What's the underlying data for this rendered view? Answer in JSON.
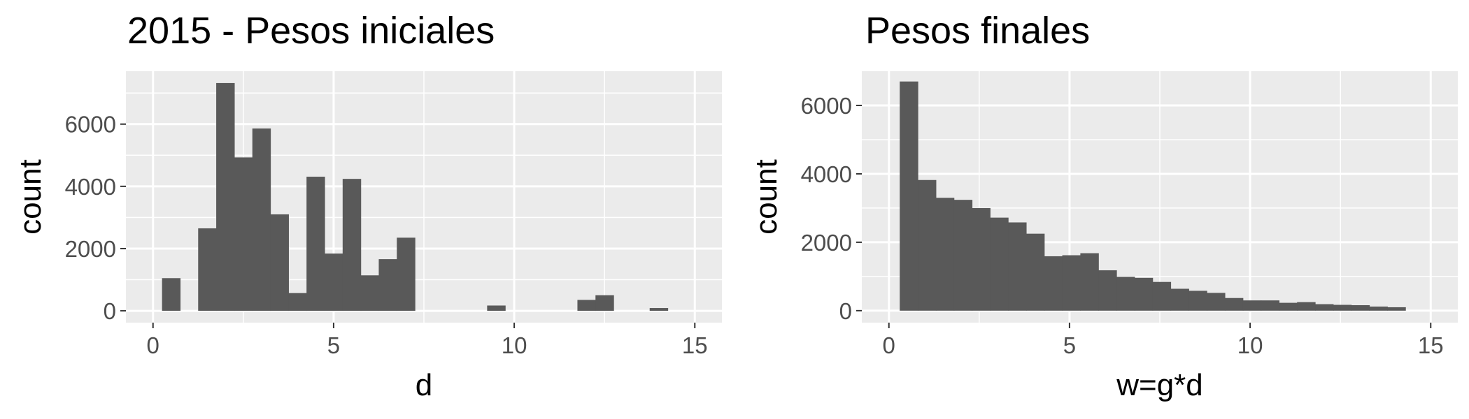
{
  "chart_data": [
    {
      "type": "bar",
      "title": "2015 - Pesos iniciales",
      "xlabel": "d",
      "ylabel": "count",
      "xlim": [
        -0.75,
        15.75
      ],
      "ylim": [
        -380,
        7700
      ],
      "xticks": [
        0,
        5,
        10,
        15
      ],
      "xtick_labels": [
        "0",
        "5",
        "10",
        "15"
      ],
      "yticks": [
        0,
        2000,
        4000,
        6000
      ],
      "ytick_labels": [
        "0",
        "2000",
        "4000",
        "6000"
      ],
      "bin_width": 0.5,
      "bin_start": 0.25,
      "values": [
        1050,
        0,
        2650,
        7320,
        4930,
        5860,
        3100,
        570,
        4310,
        1840,
        4240,
        1140,
        1660,
        2350,
        0,
        0,
        0,
        0,
        170,
        0,
        0,
        0,
        0,
        350,
        500,
        0,
        0,
        90
      ],
      "grid": true,
      "bar_color": "#595959",
      "panel_color": "#ebebeb"
    },
    {
      "type": "bar",
      "title": "Pesos finales",
      "xlabel": "w=g*d",
      "ylabel": "count",
      "xlim": [
        -0.75,
        15.75
      ],
      "ylim": [
        -350,
        7000
      ],
      "xticks": [
        0,
        5,
        10,
        15
      ],
      "xtick_labels": [
        "0",
        "5",
        "10",
        "15"
      ],
      "yticks": [
        0,
        2000,
        4000,
        6000
      ],
      "ytick_labels": [
        "0",
        "2000",
        "4000",
        "6000"
      ],
      "bin_width": 0.5,
      "bin_start": 0.3,
      "values": [
        6700,
        3820,
        3300,
        3240,
        3000,
        2720,
        2580,
        2250,
        1590,
        1620,
        1680,
        1180,
        990,
        960,
        840,
        640,
        580,
        520,
        370,
        300,
        300,
        230,
        250,
        190,
        170,
        160,
        120,
        100
      ],
      "grid": true,
      "bar_color": "#595959",
      "panel_color": "#ebebeb"
    }
  ]
}
